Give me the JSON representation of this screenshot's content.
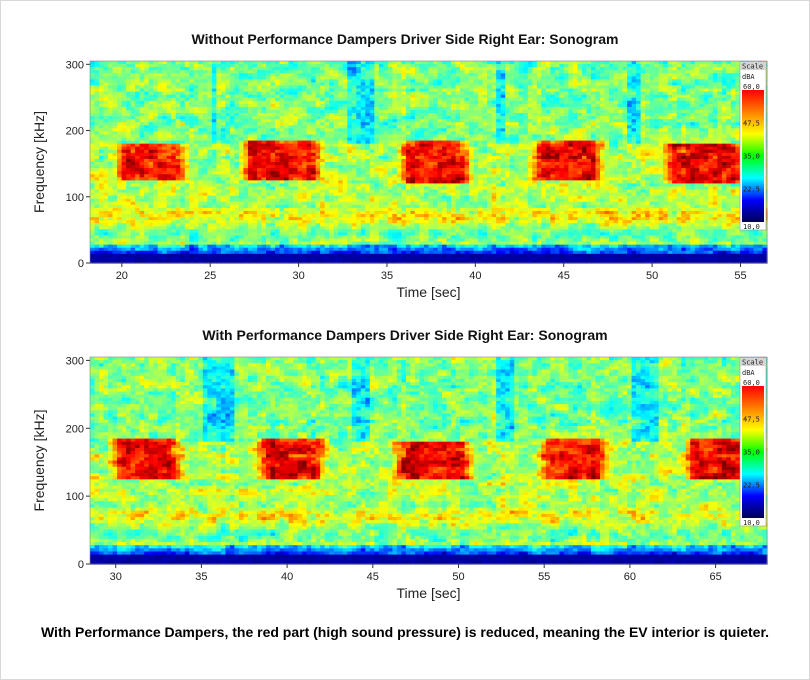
{
  "caption": "With Performance Dampers, the red part (high sound pressure) is reduced, meaning the EV interior is quieter.",
  "chart_data": [
    {
      "type": "heatmap",
      "title": "Without Performance Dampers  Driver Side Right Ear: Sonogram",
      "xlabel": "Time [sec]",
      "ylabel": "Frequency [kHz]",
      "xlim": [
        18.2,
        56.5
      ],
      "ylim": [
        0,
        305
      ],
      "x_ticks": [
        "20",
        "25",
        "30",
        "35",
        "40",
        "45",
        "50",
        "55"
      ],
      "x_tick_values": [
        20,
        25,
        30,
        35,
        40,
        45,
        50,
        55
      ],
      "y_ticks": [
        "0",
        "100",
        "200",
        "300"
      ],
      "y_tick_values": [
        0,
        100,
        200,
        300
      ],
      "high_sound_pressure_bands": [
        {
          "t_start": 19.5,
          "t_end": 23.8,
          "f_low": 125,
          "f_high": 180
        },
        {
          "t_start": 26.5,
          "t_end": 31.5,
          "f_low": 125,
          "f_high": 185
        },
        {
          "t_start": 35.5,
          "t_end": 40.0,
          "f_low": 120,
          "f_high": 185
        },
        {
          "t_start": 43.0,
          "t_end": 47.5,
          "f_low": 125,
          "f_high": 185
        },
        {
          "t_start": 50.5,
          "t_end": 55.5,
          "f_low": 120,
          "f_high": 180
        }
      ],
      "color_scale": {
        "title": "Scale",
        "unit": "dBA",
        "ticks": [
          "60,0",
          "47,5",
          "35,0",
          "22,5",
          "10,0"
        ],
        "colors": [
          "#ff0000",
          "#ff7f00",
          "#ffff00",
          "#00ff00",
          "#00ffff",
          "#0000ff",
          "#000050"
        ]
      }
    },
    {
      "type": "heatmap",
      "title": "With Performance Dampers  Driver Side Right Ear: Sonogram",
      "xlabel": "Time [sec]",
      "ylabel": "Frequency [kHz]",
      "xlim": [
        28.5,
        68.0
      ],
      "ylim": [
        0,
        305
      ],
      "x_ticks": [
        "30",
        "35",
        "40",
        "45",
        "50",
        "55",
        "60",
        "65"
      ],
      "x_tick_values": [
        30,
        35,
        40,
        45,
        50,
        55,
        60,
        65
      ],
      "y_ticks": [
        "0",
        "100",
        "200",
        "300"
      ],
      "y_tick_values": [
        0,
        100,
        200,
        300
      ],
      "high_sound_pressure_bands": [
        {
          "t_start": 29.5,
          "t_end": 34.0,
          "f_low": 125,
          "f_high": 185
        },
        {
          "t_start": 38.0,
          "t_end": 42.5,
          "f_low": 125,
          "f_high": 185
        },
        {
          "t_start": 46.0,
          "t_end": 51.0,
          "f_low": 125,
          "f_high": 180
        },
        {
          "t_start": 54.5,
          "t_end": 59.0,
          "f_low": 125,
          "f_high": 185
        },
        {
          "t_start": 63.0,
          "t_end": 67.8,
          "f_low": 125,
          "f_high": 185
        }
      ],
      "color_scale": {
        "title": "Scale",
        "unit": "dBA",
        "ticks": [
          "60,0",
          "47,5",
          "35,0",
          "22,5",
          "10,0"
        ],
        "colors": [
          "#ff0000",
          "#ff7f00",
          "#ffff00",
          "#00ff00",
          "#00ffff",
          "#0000ff",
          "#000050"
        ]
      }
    }
  ]
}
